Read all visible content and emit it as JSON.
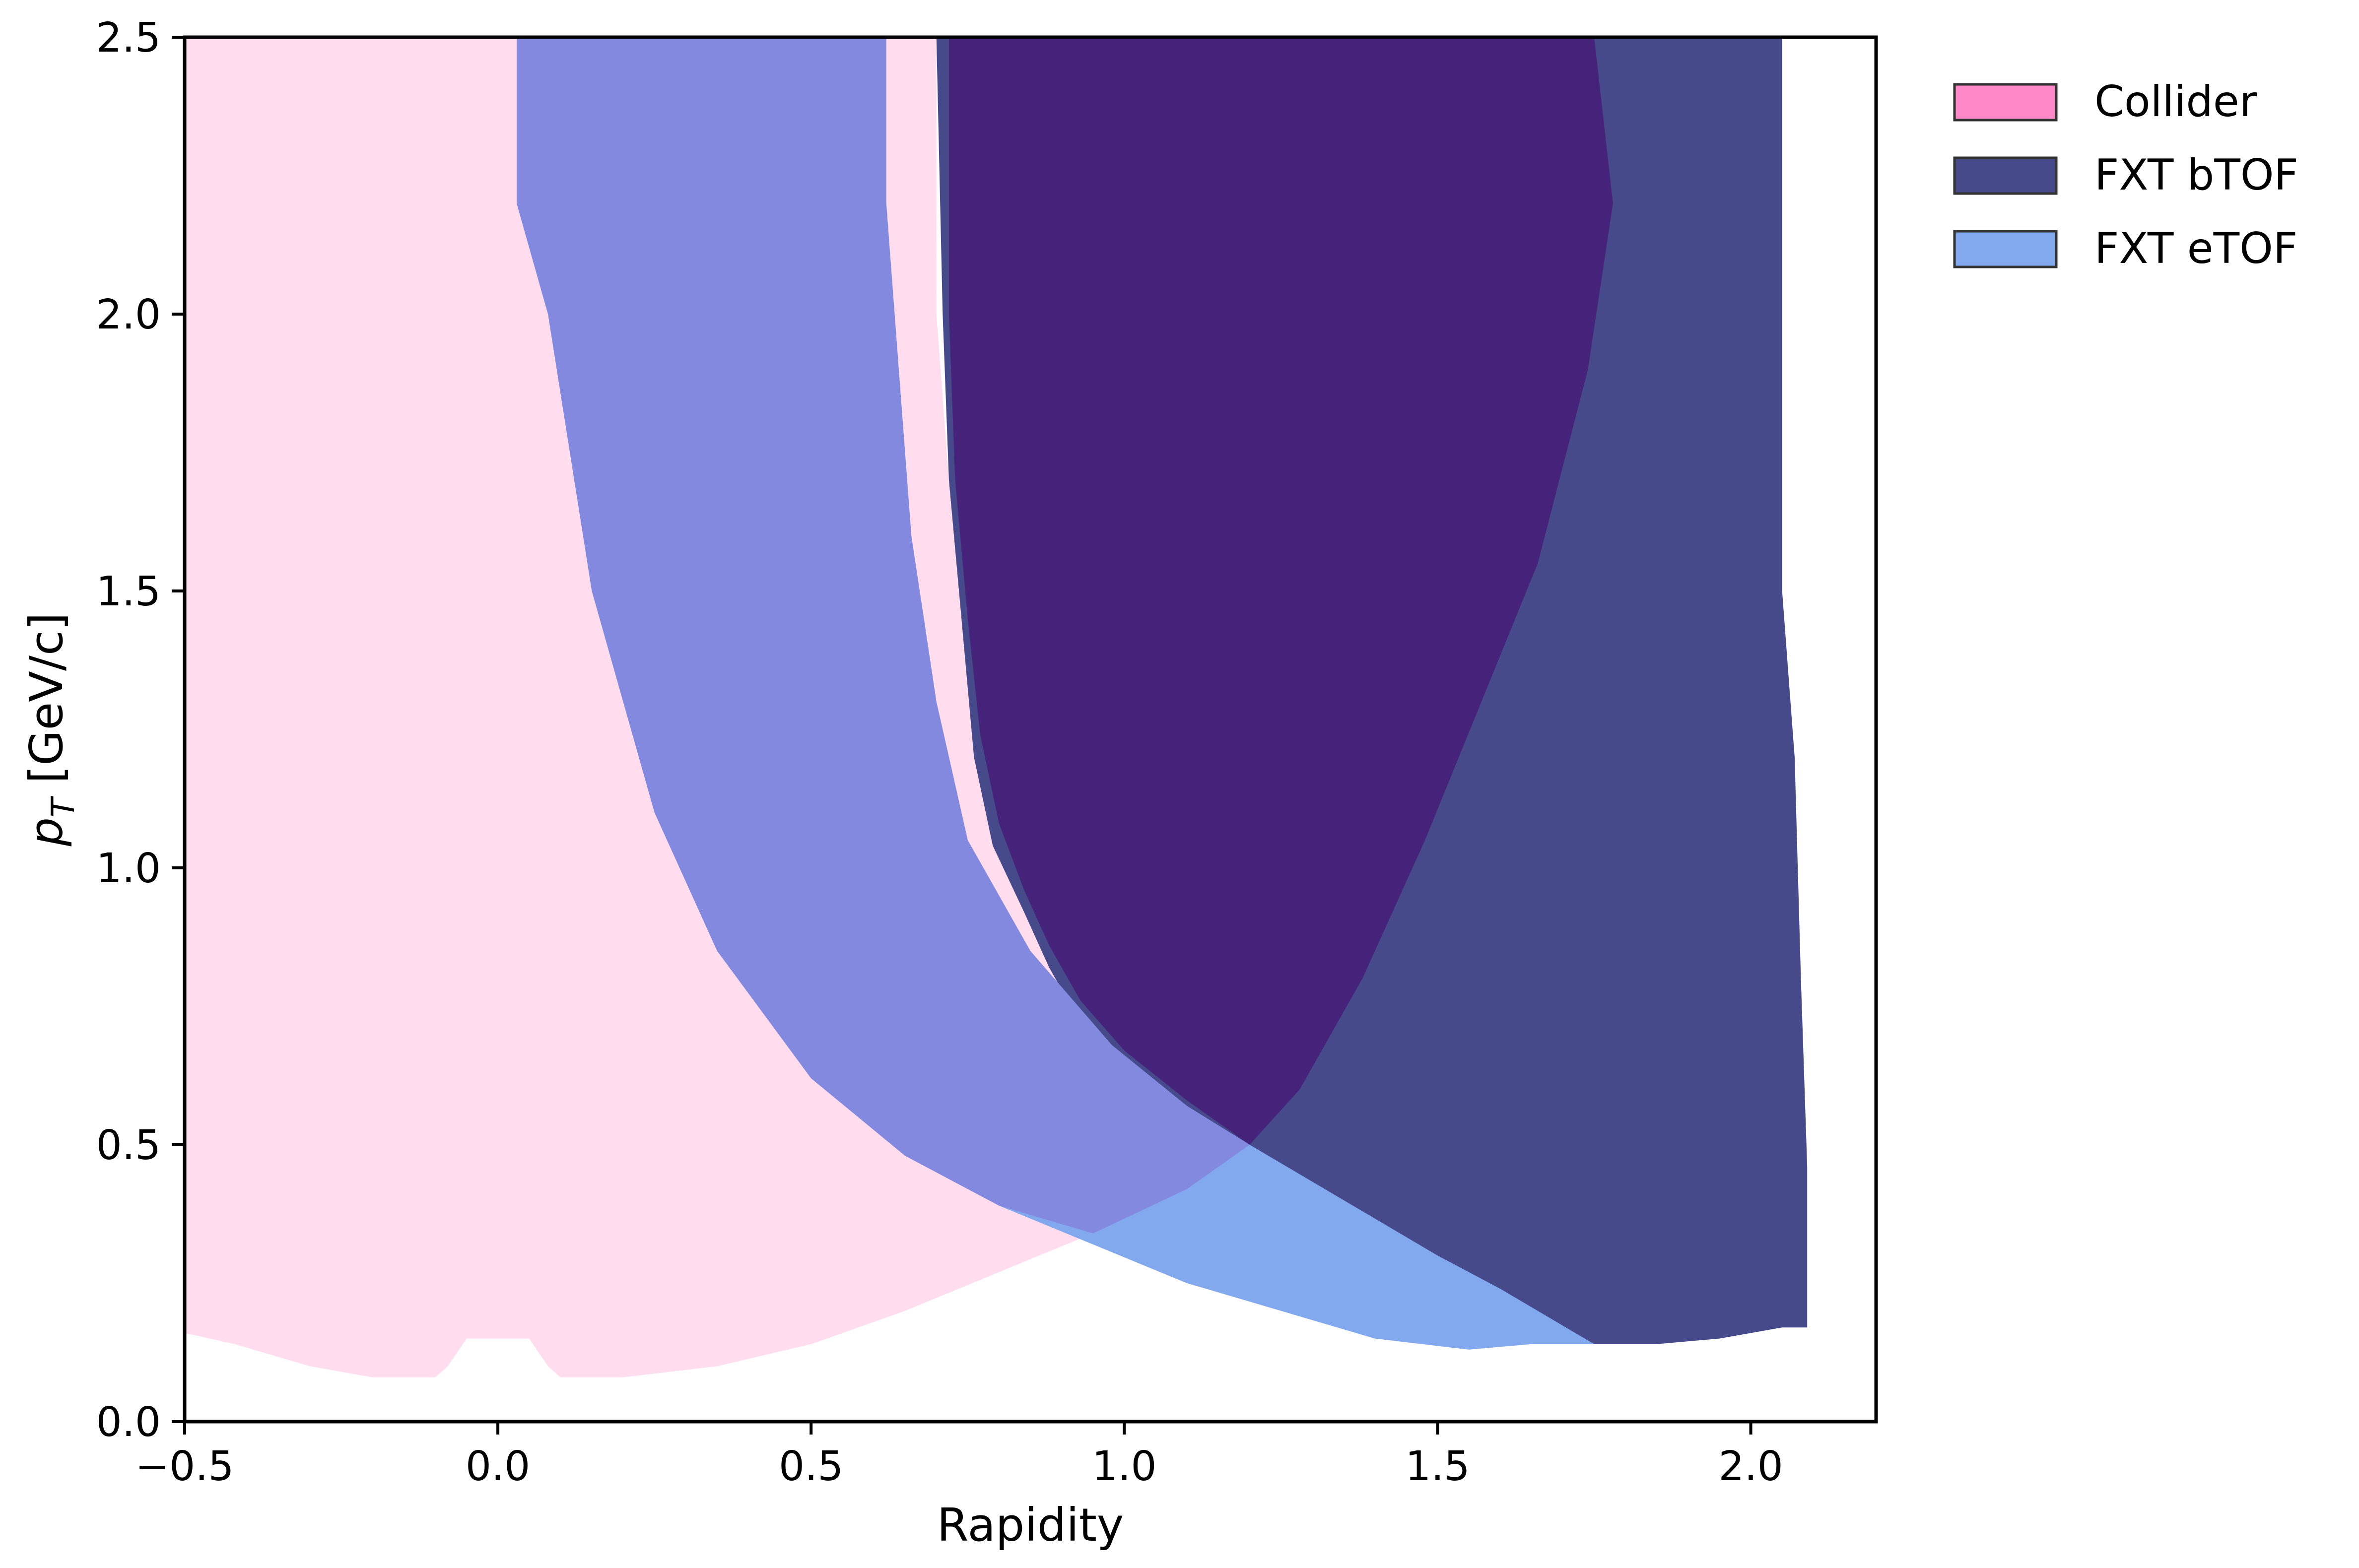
{
  "chart_data": {
    "type": "area",
    "xlabel": "Rapidity",
    "ylabel_main": "p",
    "ylabel_sub": "T",
    "ylabel_unit": " [GeV/c]",
    "xlim": [
      -0.5,
      2.2
    ],
    "ylim": [
      0.0,
      2.5
    ],
    "x_ticks": [
      -0.5,
      0.0,
      0.5,
      1.0,
      1.5,
      2.0
    ],
    "x_tick_labels": [
      "−0.5",
      "0.0",
      "0.5",
      "1.0",
      "1.5",
      "2.0"
    ],
    "y_ticks": [
      0.0,
      0.5,
      1.0,
      1.5,
      2.0,
      2.5
    ],
    "y_tick_labels": [
      "0.0",
      "0.5",
      "1.0",
      "1.5",
      "2.0",
      "2.5"
    ],
    "grid": false,
    "legend_position": "outside-right-top",
    "series": [
      {
        "name": "Collider",
        "legend_color": "#ff88c8",
        "fill_color": "#ffdcee",
        "polygon": [
          [
            -0.5,
            0.16
          ],
          [
            -0.42,
            0.14
          ],
          [
            -0.3,
            0.1
          ],
          [
            -0.2,
            0.08
          ],
          [
            -0.1,
            0.08
          ],
          [
            -0.08,
            0.1
          ],
          [
            -0.05,
            0.15
          ],
          [
            0.05,
            0.15
          ],
          [
            0.08,
            0.1
          ],
          [
            0.1,
            0.08
          ],
          [
            0.2,
            0.08
          ],
          [
            0.35,
            0.1
          ],
          [
            0.5,
            0.14
          ],
          [
            0.65,
            0.2
          ],
          [
            0.8,
            0.27
          ],
          [
            0.95,
            0.34
          ],
          [
            1.1,
            0.42
          ],
          [
            1.2,
            0.5
          ],
          [
            1.05,
            0.7
          ],
          [
            0.95,
            0.84
          ],
          [
            0.88,
            0.98
          ],
          [
            0.82,
            1.1
          ],
          [
            0.78,
            1.25
          ],
          [
            0.74,
            1.45
          ],
          [
            0.72,
            1.7
          ],
          [
            0.7,
            2.0
          ],
          [
            0.7,
            2.5
          ],
          [
            -0.5,
            2.5
          ]
        ]
      },
      {
        "name": "FXT bTOF",
        "legend_color": "#464a8a",
        "fill_color": "#464a8a",
        "polygon": [
          [
            0.7,
            2.5
          ],
          [
            2.05,
            2.5
          ],
          [
            2.05,
            1.5
          ],
          [
            2.07,
            1.2
          ],
          [
            2.08,
            0.8
          ],
          [
            2.09,
            0.46
          ],
          [
            2.09,
            0.17
          ],
          [
            2.05,
            0.17
          ],
          [
            1.95,
            0.15
          ],
          [
            1.85,
            0.14
          ],
          [
            1.75,
            0.14
          ],
          [
            1.65,
            0.18
          ],
          [
            1.5,
            0.25
          ],
          [
            1.4,
            0.31
          ],
          [
            1.3,
            0.39
          ],
          [
            1.2,
            0.5
          ],
          [
            1.1,
            0.56
          ],
          [
            1.0,
            0.63
          ],
          [
            0.93,
            0.72
          ],
          [
            0.88,
            0.82
          ],
          [
            0.84,
            0.92
          ],
          [
            0.79,
            1.04
          ],
          [
            0.76,
            1.2
          ],
          [
            0.74,
            1.45
          ],
          [
            0.72,
            1.7
          ],
          [
            0.71,
            2.0
          ]
        ]
      },
      {
        "name": "FXT eTOF",
        "legend_color": "#82a8ee",
        "fill_color": "#82a8ee",
        "polygon": [
          [
            0.03,
            2.5
          ],
          [
            0.62,
            2.5
          ],
          [
            0.62,
            2.2
          ],
          [
            0.64,
            1.9
          ],
          [
            0.66,
            1.6
          ],
          [
            0.7,
            1.3
          ],
          [
            0.75,
            1.05
          ],
          [
            0.85,
            0.85
          ],
          [
            0.98,
            0.68
          ],
          [
            1.1,
            0.57
          ],
          [
            1.2,
            0.5
          ],
          [
            1.35,
            0.4
          ],
          [
            1.5,
            0.3
          ],
          [
            1.6,
            0.24
          ],
          [
            1.75,
            0.14
          ],
          [
            1.65,
            0.14
          ],
          [
            1.55,
            0.13
          ],
          [
            1.4,
            0.15
          ],
          [
            1.25,
            0.2
          ],
          [
            1.1,
            0.25
          ],
          [
            0.95,
            0.32
          ],
          [
            0.8,
            0.39
          ],
          [
            0.65,
            0.48
          ],
          [
            0.5,
            0.62
          ],
          [
            0.35,
            0.85
          ],
          [
            0.25,
            1.1
          ],
          [
            0.15,
            1.5
          ],
          [
            0.08,
            2.0
          ],
          [
            0.03,
            2.2
          ]
        ]
      }
    ],
    "overlap_regions": [
      {
        "between": [
          "Collider",
          "FXT eTOF"
        ],
        "fill_color": "#8489e0",
        "polygon": [
          [
            0.03,
            2.5
          ],
          [
            0.62,
            2.5
          ],
          [
            0.62,
            2.2
          ],
          [
            0.64,
            1.9
          ],
          [
            0.66,
            1.6
          ],
          [
            0.7,
            1.3
          ],
          [
            0.75,
            1.05
          ],
          [
            0.85,
            0.85
          ],
          [
            0.98,
            0.68
          ],
          [
            1.1,
            0.57
          ],
          [
            1.2,
            0.5
          ],
          [
            1.1,
            0.42
          ],
          [
            0.95,
            0.34
          ],
          [
            0.8,
            0.39
          ],
          [
            0.65,
            0.48
          ],
          [
            0.5,
            0.62
          ],
          [
            0.35,
            0.85
          ],
          [
            0.25,
            1.1
          ],
          [
            0.15,
            1.5
          ],
          [
            0.08,
            2.0
          ],
          [
            0.03,
            2.2
          ]
        ]
      },
      {
        "between": [
          "Collider",
          "FXT bTOF"
        ],
        "fill_color": "#46237a",
        "polygon": [
          [
            0.72,
            2.5
          ],
          [
            1.75,
            2.5
          ],
          [
            1.78,
            2.2
          ],
          [
            1.74,
            1.9
          ],
          [
            1.66,
            1.55
          ],
          [
            1.57,
            1.3
          ],
          [
            1.48,
            1.05
          ],
          [
            1.38,
            0.8
          ],
          [
            1.28,
            0.6
          ],
          [
            1.2,
            0.5
          ],
          [
            1.1,
            0.58
          ],
          [
            1.0,
            0.67
          ],
          [
            0.93,
            0.76
          ],
          [
            0.88,
            0.86
          ],
          [
            0.84,
            0.96
          ],
          [
            0.8,
            1.08
          ],
          [
            0.77,
            1.24
          ],
          [
            0.75,
            1.45
          ],
          [
            0.73,
            1.7
          ],
          [
            0.72,
            2.0
          ]
        ]
      }
    ]
  }
}
